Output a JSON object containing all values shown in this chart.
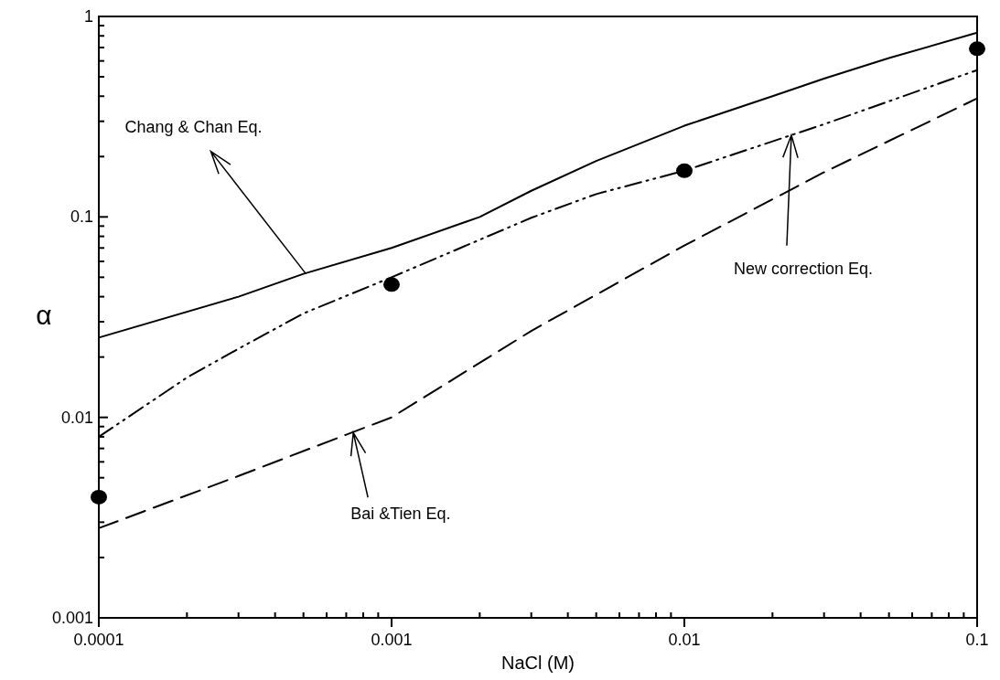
{
  "chart_data": {
    "type": "line",
    "xlabel": "NaCl (M)",
    "ylabel": "α",
    "log": "xy",
    "grid": false,
    "annotations": [
      {
        "text": "Chang & Chan Eq.",
        "x": 0.00051,
        "y": 0.052
      },
      {
        "text": "New correction Eq.",
        "x": 0.0232,
        "y": 0.256
      },
      {
        "text": "Bai &Tien Eq.",
        "x": 0.00074,
        "y": 0.0084
      }
    ],
    "xlim": [
      0.0001,
      0.1
    ],
    "ylim": [
      0.001,
      1
    ],
    "xticks": [
      0.0001,
      {
        "value": 0.0002,
        "label": null
      },
      {
        "value": 0.0003,
        "label": null
      },
      {
        "value": 0.0004,
        "label": null
      },
      {
        "value": 0.0005,
        "label": null
      },
      {
        "value": 0.0006,
        "label": null
      },
      {
        "value": 0.0007,
        "label": null
      },
      {
        "value": 0.0008,
        "label": null
      },
      {
        "value": 0.0009,
        "label": null
      },
      0.001,
      {
        "value": 0.002,
        "label": null
      },
      {
        "value": 0.003,
        "label": null
      },
      {
        "value": 0.004,
        "label": null
      },
      {
        "value": 0.005,
        "label": null
      },
      {
        "value": 0.006,
        "label": null
      },
      {
        "value": 0.007,
        "label": null
      },
      {
        "value": 0.008,
        "label": null
      },
      {
        "value": 0.009,
        "label": null
      },
      0.01,
      {
        "value": 0.02,
        "label": null
      },
      {
        "value": 0.03,
        "label": null
      },
      {
        "value": 0.04,
        "label": null
      },
      {
        "value": 0.05,
        "label": null
      },
      {
        "value": 0.06,
        "label": null
      },
      {
        "value": 0.07,
        "label": null
      },
      {
        "value": 0.08,
        "label": null
      },
      {
        "value": 0.09,
        "label": null
      },
      0.1
    ],
    "yticks": [
      0.001,
      {
        "value": 0.002,
        "label": null
      },
      {
        "value": 0.003,
        "label": null
      },
      {
        "value": 0.004,
        "label": null
      },
      {
        "value": 0.005,
        "label": null
      },
      {
        "value": 0.006,
        "label": null
      },
      {
        "value": 0.007,
        "label": null
      },
      {
        "value": 0.008,
        "label": null
      },
      {
        "value": 0.009,
        "label": null
      },
      0.01,
      {
        "value": 0.02,
        "label": null
      },
      {
        "value": 0.03,
        "label": null
      },
      {
        "value": 0.04,
        "label": null
      },
      {
        "value": 0.05,
        "label": null
      },
      {
        "value": 0.06,
        "label": null
      },
      {
        "value": 0.07,
        "label": null
      },
      {
        "value": 0.08,
        "label": null
      },
      {
        "value": 0.09,
        "label": null
      },
      0.1,
      {
        "value": 0.2,
        "label": null
      },
      {
        "value": 0.3,
        "label": null
      },
      {
        "value": 0.4,
        "label": null
      },
      {
        "value": 0.5,
        "label": null
      },
      {
        "value": 0.6,
        "label": null
      },
      {
        "value": 0.7,
        "label": null
      },
      {
        "value": 0.8,
        "label": null
      },
      {
        "value": 0.9,
        "label": null
      },
      1
    ],
    "series": [
      {
        "color": "#000000",
        "line_style": "solid",
        "marker": "none",
        "x": [
          0.0001,
          0.0003,
          0.0005,
          0.001,
          0.002,
          0.003,
          0.005,
          0.01,
          0.02,
          0.03,
          0.05,
          0.1
        ],
        "values": [
          0.025,
          0.04,
          0.052,
          0.07,
          0.1,
          0.135,
          0.19,
          0.285,
          0.4,
          0.49,
          0.62,
          0.83
        ]
      },
      {
        "color": "#000000",
        "line_style": "dotted",
        "marker": "none",
        "x": [
          0.0001,
          0.0002,
          0.0003,
          0.0005,
          0.001,
          0.003,
          0.005,
          0.01,
          0.03,
          0.1
        ],
        "values": [
          0.008,
          0.0158,
          0.022,
          0.033,
          0.05,
          0.099,
          0.13,
          0.17,
          0.29,
          0.54
        ]
      },
      {
        "color": "#000000",
        "line_style": "dashed",
        "marker": "none",
        "x": [
          0.0001,
          0.0003,
          0.0007,
          0.001,
          0.003,
          0.01,
          0.03,
          0.1
        ],
        "values": [
          0.0028,
          0.0051,
          0.0082,
          0.01,
          0.027,
          0.072,
          0.167,
          0.39
        ]
      },
      {
        "type": "scatter",
        "color": "#000000",
        "marker": "circle",
        "x": [
          0.0001,
          0.001,
          0.01,
          0.1
        ],
        "values": [
          0.004,
          0.046,
          0.17,
          0.69
        ]
      }
    ]
  }
}
